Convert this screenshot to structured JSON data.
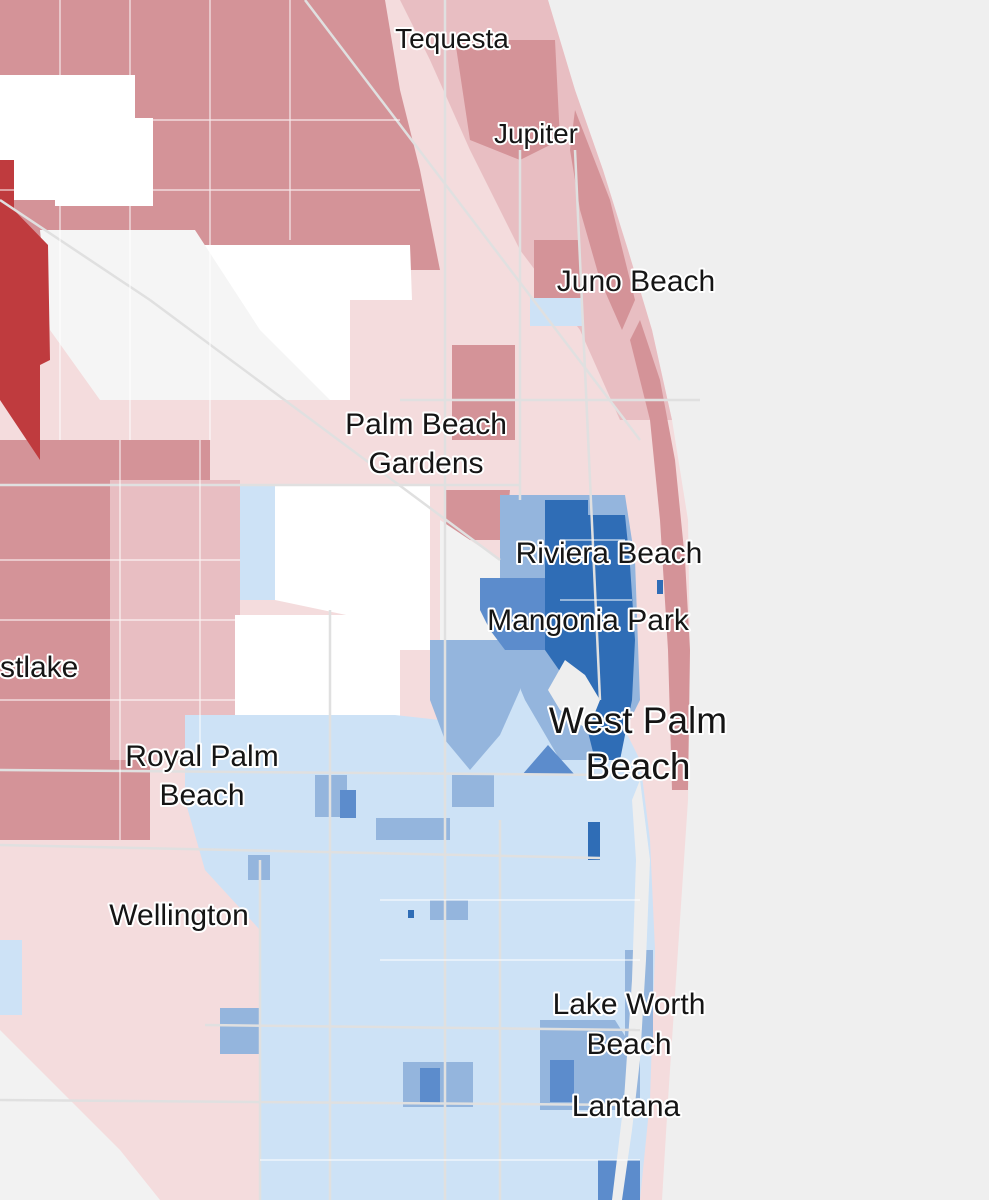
{
  "map": {
    "colors": {
      "ocean": "#efefef",
      "strong_red": "#bf3b3e",
      "red": "#d49398",
      "light_red": "#e8bec2",
      "very_light_red": "#f4dcdd",
      "white": "#ffffff",
      "grey": "#f2f2f2",
      "light_blue": "#cde2f6",
      "mid_blue": "#94b5dd",
      "blue": "#5c8ccc",
      "strong_blue": "#2f6db6",
      "road": "#e0e0e0"
    },
    "places": {
      "tequesta": "Tequesta",
      "jupiter": "Jupiter",
      "juno_beach": "Juno Beach",
      "palm_beach_gardens_1": "Palm Beach",
      "palm_beach_gardens_2": "Gardens",
      "riviera_beach": "Riviera Beach",
      "mangonia_park": "Mangonia Park",
      "westlake": "stlake",
      "west_palm_beach_1": "West Palm",
      "west_palm_beach_2": "Beach",
      "royal_palm_beach_1": "Royal Palm",
      "royal_palm_beach_2": "Beach",
      "wellington": "Wellington",
      "lake_worth_beach_1": "Lake Worth",
      "lake_worth_beach_2": "Beach",
      "lantana": "Lantana"
    }
  }
}
